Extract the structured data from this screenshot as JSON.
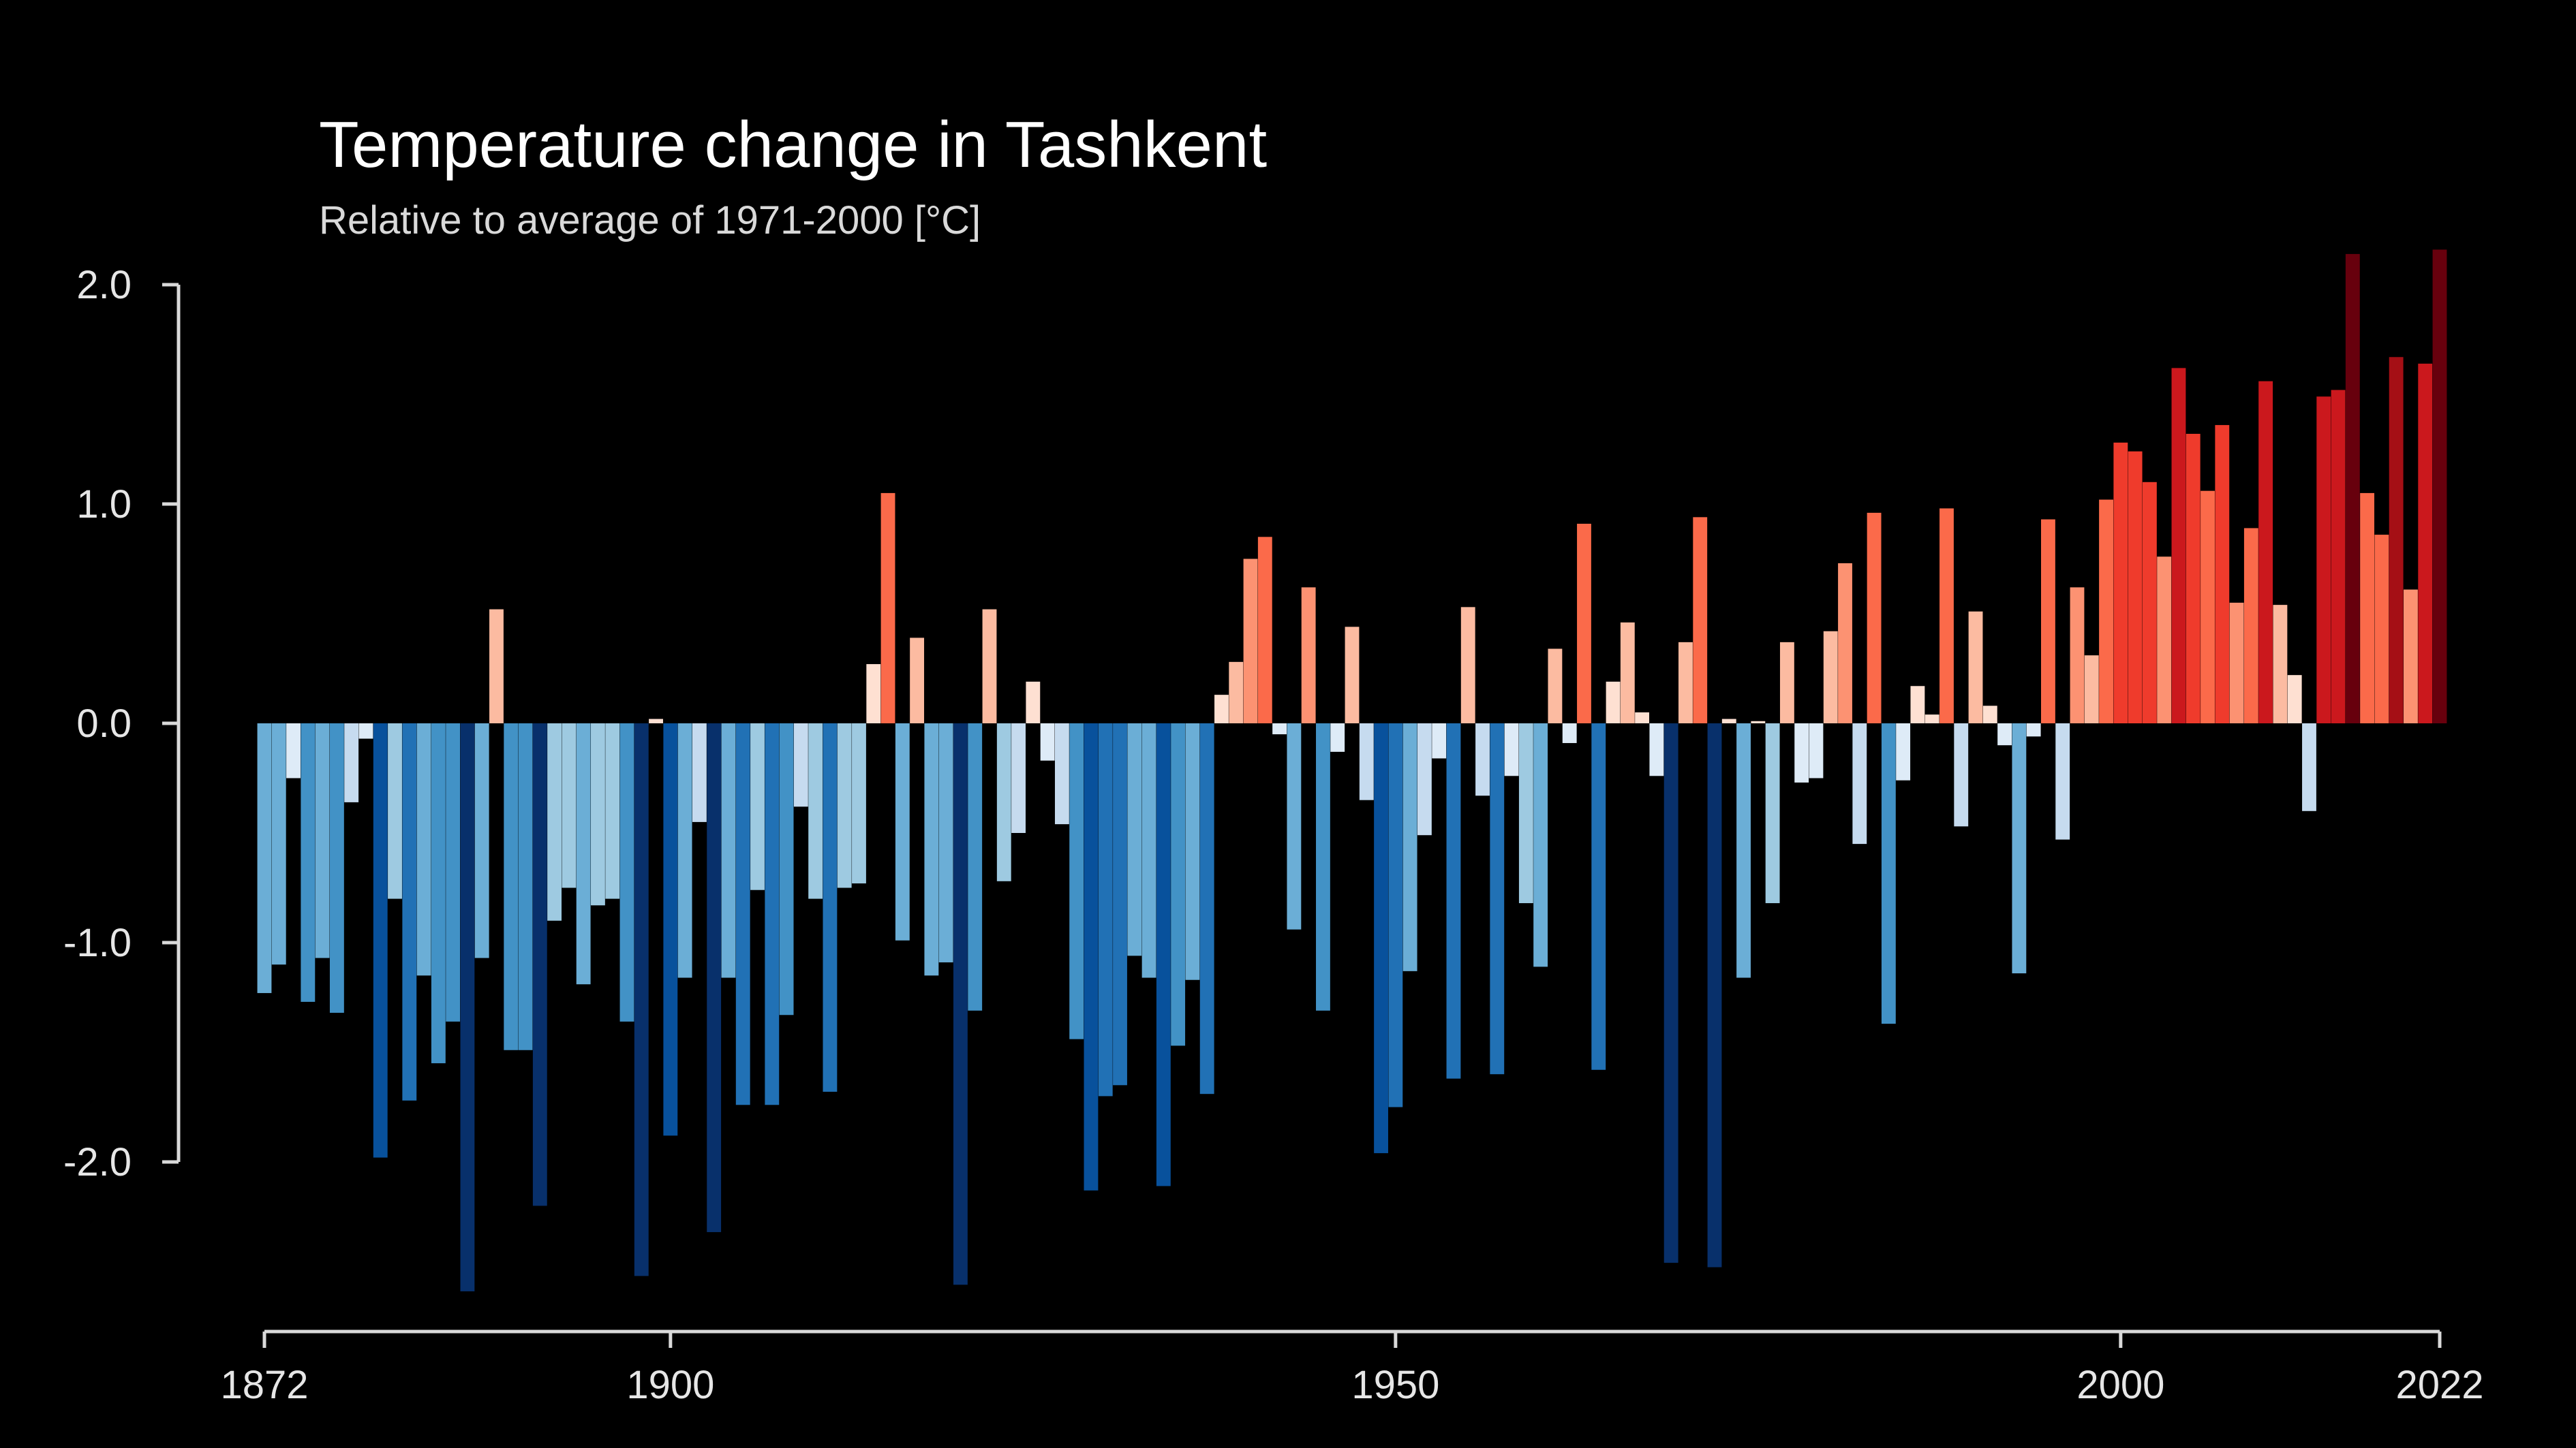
{
  "chart_data": {
    "type": "bar",
    "title": "Temperature change in Tashkent",
    "subtitle": "Relative to average of 1971-2000  [°C]",
    "xlabel": "",
    "ylabel": "",
    "x_start": 1872,
    "x_end": 2022,
    "xlim": [
      1872,
      2022
    ],
    "ylim": [
      -2.8,
      2.2
    ],
    "x_ticks": [
      1872,
      1900,
      1950,
      2000,
      2022
    ],
    "x_tick_labels": [
      "1872",
      "1900",
      "1950",
      "2000",
      "2022"
    ],
    "y_ticks": [
      2.0,
      1.0,
      0.0,
      -1.0,
      -2.0
    ],
    "y_tick_labels": [
      "2.0",
      "1.0",
      "0.0",
      "-1.0",
      "-2.0"
    ],
    "grid": false,
    "legend": "none",
    "color_scale": {
      "cold": [
        "#08306b",
        "#08519c",
        "#2171b5",
        "#4292c6",
        "#6baed6",
        "#9ecae1",
        "#c6dbef",
        "#deebf7"
      ],
      "warm": [
        "#fee0d2",
        "#fcbba1",
        "#fc9272",
        "#fb6a4a",
        "#ef3b2c",
        "#cb181d",
        "#a50f15",
        "#67000d"
      ]
    },
    "values": [
      -1.23,
      -1.1,
      -0.25,
      -1.27,
      -1.07,
      -1.32,
      -0.36,
      -0.07,
      -1.98,
      -0.8,
      -1.72,
      -1.15,
      -1.55,
      -1.36,
      -2.59,
      -1.07,
      0.52,
      -1.49,
      -1.49,
      -2.2,
      -0.9,
      -0.75,
      -1.19,
      -0.83,
      -0.8,
      -1.36,
      -2.52,
      0.02,
      -1.88,
      -1.16,
      -0.45,
      -2.32,
      -1.16,
      -1.74,
      -0.76,
      -1.74,
      -1.33,
      -0.38,
      -0.8,
      -1.68,
      -0.75,
      -0.73,
      0.27,
      1.05,
      -0.99,
      0.39,
      -1.15,
      -1.09,
      -2.56,
      -1.31,
      0.52,
      -0.72,
      -0.5,
      0.19,
      -0.17,
      -0.46,
      -1.44,
      -2.13,
      -1.7,
      -1.65,
      -1.06,
      -1.16,
      -2.11,
      -1.47,
      -1.17,
      -1.69,
      0.13,
      0.28,
      0.75,
      0.85,
      -0.05,
      -0.94,
      0.62,
      -1.31,
      -0.13,
      0.44,
      -0.35,
      -1.96,
      -1.75,
      -1.13,
      -0.51,
      -0.16,
      -1.62,
      0.53,
      -0.33,
      -1.6,
      -0.24,
      -0.82,
      -1.11,
      0.34,
      -0.09,
      0.91,
      -1.58,
      0.19,
      0.46,
      0.05,
      -0.24,
      -2.46,
      0.37,
      0.94,
      -2.48,
      0.02,
      -1.16,
      0.01,
      -0.82,
      0.37,
      -0.27,
      -0.25,
      0.42,
      0.73,
      -0.55,
      0.96,
      -1.37,
      -0.26,
      0.17,
      0.04,
      0.98,
      -0.47,
      0.51,
      0.08,
      -0.1,
      -1.14,
      -0.06,
      0.93,
      -0.53,
      0.62,
      0.31,
      1.02,
      1.28,
      1.24,
      1.1,
      0.76,
      1.62,
      1.32,
      1.06,
      1.36,
      0.55,
      0.89,
      1.56,
      0.54,
      0.22,
      -0.4,
      1.49,
      1.52,
      2.14,
      1.05,
      0.86,
      1.67,
      0.61,
      1.64,
      2.16
    ]
  }
}
